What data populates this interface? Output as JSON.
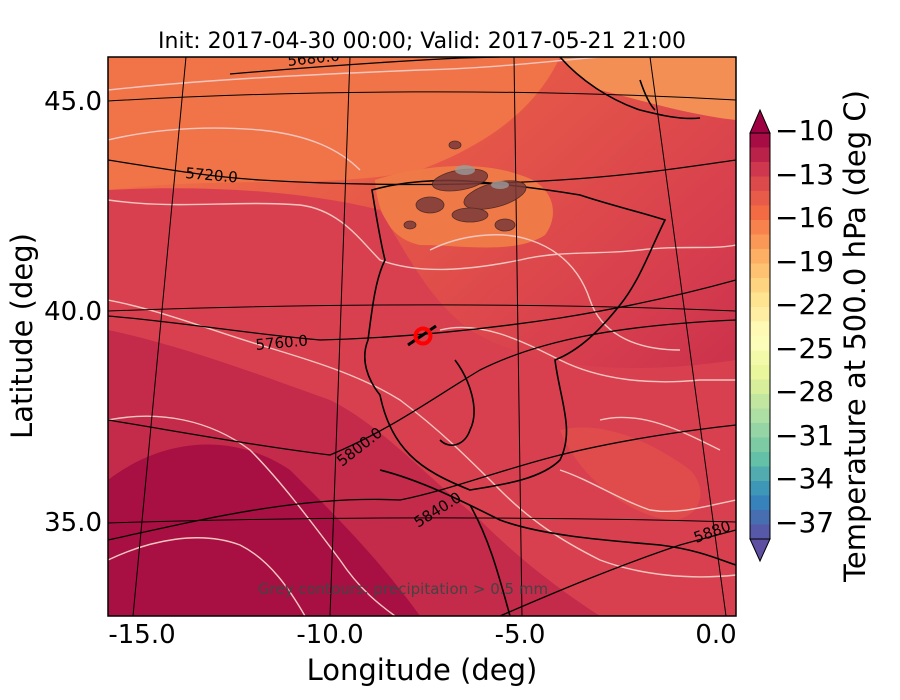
{
  "figure": {
    "title": "Init: 2017-04-30 00:00; Valid: 2017-05-21 21:00",
    "xlabel": "Longitude (deg)",
    "ylabel": "Latitude (deg)",
    "x_ticks": [
      "-15.0",
      "-10.0",
      "-5.0",
      "0.0"
    ],
    "y_ticks": [
      "45.0",
      "40.0",
      "35.0"
    ],
    "colorbar_label": "Temperature at 500.0 hPa (deg C)",
    "colorbar_ticks": [
      "−10",
      "−13",
      "−16",
      "−19",
      "−22",
      "−25",
      "−28",
      "−31",
      "−34",
      "−37"
    ],
    "contour_labels": [
      "5680.0",
      "5720.0",
      "5760.0",
      "5800.0",
      "5840.0",
      "5880"
    ],
    "annotation": "Grey contours: precipitation > 0.5 mm"
  },
  "chart_data": {
    "type": "heatmap",
    "title": "Init: 2017-04-30 00:00; Valid: 2017-05-21 21:00",
    "xlabel": "Longitude (deg)",
    "ylabel": "Latitude (deg)",
    "xlim": [
      -16,
      0
    ],
    "ylim": [
      32.6,
      46.2
    ],
    "colorbar": {
      "label": "Temperature at 500.0 hPa (deg C)",
      "range": [
        -38,
        -10
      ],
      "ticks": [
        -10,
        -13,
        -16,
        -19,
        -22,
        -25,
        -28,
        -31,
        -34,
        -37
      ],
      "palette": "Spectral_r",
      "extend": "both"
    },
    "height_contours_m": [
      5680,
      5720,
      5760,
      5800,
      5840,
      5880
    ],
    "marker": {
      "lon": -7.6,
      "lat": 39.3,
      "color": "#ff0000"
    },
    "precipitation_threshold_mm": 0.5
  }
}
